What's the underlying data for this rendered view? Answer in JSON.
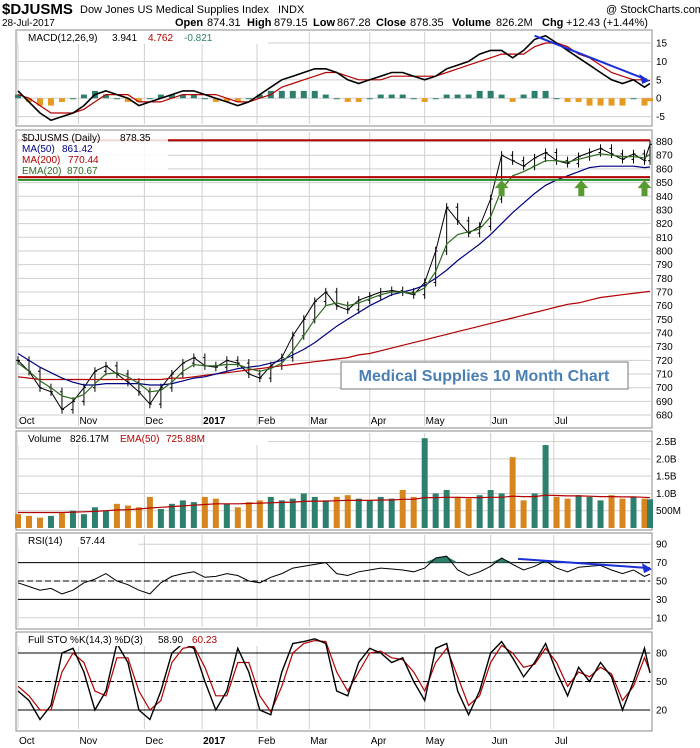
{
  "header": {
    "symbol": "$DJUSMS",
    "name": "Dow Jones US Medical Supplies Index",
    "exchange": "INDX",
    "date": "28-Jul-2017",
    "copyright": "@ StockCharts.com",
    "open_label": "Open",
    "open": "874.31",
    "high_label": "High",
    "high": "879.15",
    "low_label": "Low",
    "low": "867.28",
    "close_label": "Close",
    "close": "878.35",
    "volume_label": "Volume",
    "volume": "826.2M",
    "chg_label": "Chg",
    "chg": "+12.43 (+1.44%)"
  },
  "colors": {
    "grid": "#cfcfcf",
    "price": "#000000",
    "ma50": "#000080",
    "ma200": "#b30000",
    "ema20": "#2e6b1f",
    "hline_red": "#b30000",
    "support_green": "#2a8a2a",
    "arrow_green": "#5a9a32",
    "macd_pos": "#2f7f6f",
    "macd_neg": "#e79a22",
    "vol_up": "#2f7f6f",
    "vol_down": "#d6851f",
    "trend_blue": "#1a2fd6",
    "rsi_fill": "#2f7f6f",
    "annotation_text": "#4a7fb3"
  },
  "annotation": "Medical Supplies 10 Month Chart",
  "chart_data": [
    {
      "type": "line",
      "panel": "macd",
      "title": "MACD(12,26,9)",
      "legend": {
        "macd": "3.941",
        "signal": "4.762",
        "histogram": "-0.821"
      },
      "y_ticks": [
        15,
        10,
        5,
        0,
        -5
      ],
      "ylim": [
        -7,
        18
      ],
      "x": [
        0,
        4,
        8,
        12,
        16,
        20,
        24,
        28,
        32,
        36,
        40,
        44,
        48,
        52,
        56,
        60,
        64,
        68,
        72,
        76,
        80,
        84,
        88,
        92,
        96,
        100,
        104,
        108,
        112,
        116,
        120,
        124,
        128,
        132,
        136,
        140,
        144,
        148,
        152,
        156,
        160,
        164,
        168,
        172,
        176,
        180,
        184,
        188,
        192,
        196,
        200,
        204,
        208,
        212,
        216,
        220,
        224,
        228,
        230
      ],
      "macd_values": [
        2,
        -1,
        -4,
        -6,
        -5,
        -4,
        -2,
        1,
        2,
        1,
        0,
        -2,
        -1,
        0,
        1,
        2,
        2,
        1,
        0,
        -1,
        -2,
        -1,
        1,
        3,
        5,
        6,
        7,
        8,
        8,
        7,
        5,
        4,
        5,
        6,
        7,
        7,
        6,
        5,
        6,
        8,
        9,
        10,
        12,
        13,
        13,
        11,
        13,
        16,
        17,
        15,
        13,
        11,
        9,
        7,
        5,
        4,
        5,
        3,
        4
      ],
      "signal_values": [
        1,
        0,
        -2,
        -4,
        -4,
        -4,
        -3,
        -1,
        1,
        1,
        1,
        -1,
        -1,
        -1,
        0,
        1,
        1,
        1,
        1,
        0,
        -1,
        -1,
        0,
        1,
        3,
        4,
        5,
        6,
        7,
        7,
        6,
        5,
        5,
        5,
        6,
        6,
        6,
        6,
        6,
        7,
        8,
        9,
        10,
        11,
        12,
        12,
        12,
        14,
        15,
        15,
        14,
        12,
        11,
        9,
        7,
        6,
        5,
        5,
        4.8
      ],
      "trendline": {
        "from": [
          188,
          17
        ],
        "to": [
          229,
          5
        ]
      }
    },
    {
      "type": "line",
      "panel": "price",
      "title": "$DJUSMS (Daily)",
      "legend": [
        {
          "name": "$DJUSMS (Daily)",
          "value": "878.35"
        },
        {
          "name": "MA(50)",
          "value": "861.42"
        },
        {
          "name": "MA(200)",
          "value": "770.44"
        },
        {
          "name": "EMA(20)",
          "value": "870.67"
        }
      ],
      "y_ticks": [
        680,
        690,
        700,
        710,
        720,
        730,
        740,
        750,
        760,
        770,
        780,
        790,
        800,
        810,
        820,
        830,
        840,
        850,
        860,
        870,
        880
      ],
      "ylim": [
        672,
        887
      ],
      "x_ticks": [
        "Oct",
        "Nov",
        "Dec",
        "2017",
        "Feb",
        "Mar",
        "Apr",
        "May",
        "Jun",
        "Jul"
      ],
      "x": [
        0,
        4,
        8,
        12,
        16,
        20,
        24,
        28,
        32,
        36,
        40,
        44,
        48,
        52,
        56,
        60,
        64,
        68,
        72,
        76,
        80,
        84,
        88,
        92,
        96,
        100,
        104,
        108,
        112,
        116,
        120,
        124,
        128,
        132,
        136,
        140,
        144,
        148,
        152,
        156,
        160,
        164,
        168,
        172,
        176,
        180,
        184,
        188,
        192,
        196,
        200,
        204,
        208,
        212,
        216,
        220,
        224,
        228,
        230
      ],
      "close_values": [
        720,
        712,
        700,
        697,
        684,
        690,
        700,
        712,
        716,
        710,
        704,
        697,
        688,
        700,
        710,
        718,
        722,
        716,
        715,
        720,
        718,
        710,
        707,
        716,
        722,
        738,
        750,
        763,
        770,
        760,
        757,
        764,
        767,
        770,
        771,
        770,
        768,
        777,
        800,
        832,
        822,
        813,
        818,
        838,
        870,
        866,
        862,
        868,
        872,
        866,
        864,
        869,
        872,
        875,
        871,
        867,
        871,
        866,
        878
      ],
      "ma50_values": [
        725,
        720,
        715,
        711,
        707,
        704,
        702,
        702,
        703,
        703,
        703,
        703,
        702,
        702,
        703,
        705,
        707,
        708,
        710,
        712,
        714,
        715,
        716,
        718,
        720,
        724,
        728,
        733,
        739,
        745,
        750,
        755,
        760,
        764,
        768,
        770,
        772,
        775,
        780,
        786,
        793,
        799,
        805,
        812,
        820,
        828,
        835,
        842,
        848,
        852,
        855,
        858,
        861,
        862,
        862,
        862,
        862,
        861,
        861.42
      ],
      "ma200_values": [
        708,
        707,
        706,
        706,
        706,
        706,
        706,
        706,
        706,
        706,
        706,
        706,
        706,
        706,
        707,
        707,
        708,
        709,
        710,
        711,
        712,
        713,
        714,
        715,
        716,
        717,
        718,
        719,
        720,
        721,
        722,
        724,
        725,
        727,
        729,
        731,
        733,
        735,
        737,
        739,
        741,
        743,
        745,
        747,
        749,
        751,
        753,
        755,
        757,
        759,
        761,
        762,
        764,
        766,
        767,
        768,
        769,
        770,
        770.44
      ],
      "ema20_values": [
        718,
        712,
        705,
        700,
        694,
        692,
        695,
        703,
        710,
        711,
        708,
        703,
        697,
        698,
        704,
        712,
        717,
        716,
        716,
        717,
        717,
        714,
        712,
        714,
        718,
        727,
        738,
        750,
        760,
        762,
        760,
        762,
        765,
        768,
        770,
        770,
        769,
        773,
        785,
        805,
        812,
        814,
        816,
        825,
        845,
        855,
        858,
        862,
        866,
        866,
        865,
        867,
        869,
        871,
        870,
        869,
        869,
        868,
        870.67
      ],
      "hlines": [
        {
          "value": 881,
          "color": "red"
        },
        {
          "value": 854,
          "color": "red"
        },
        {
          "value": 852,
          "color": "green"
        }
      ],
      "support_arrows_at_x": [
        176,
        205,
        228
      ]
    },
    {
      "type": "bar",
      "panel": "volume",
      "title": "Volume",
      "legend": {
        "volume": "826.17M",
        "ema_label": "EMA(50)",
        "ema": "725.88M"
      },
      "y_ticks": [
        "2.5B",
        "2.0B",
        "1.5B",
        "1.0B",
        "500M"
      ],
      "ylim": [
        0,
        2.75
      ],
      "x": [
        0,
        4,
        8,
        12,
        16,
        20,
        24,
        28,
        32,
        36,
        40,
        44,
        48,
        52,
        56,
        60,
        64,
        68,
        72,
        76,
        80,
        84,
        88,
        92,
        96,
        100,
        104,
        108,
        112,
        116,
        120,
        124,
        128,
        132,
        136,
        140,
        144,
        148,
        152,
        156,
        160,
        164,
        168,
        172,
        176,
        180,
        184,
        188,
        192,
        196,
        200,
        204,
        208,
        212,
        216,
        220,
        224,
        228,
        230
      ],
      "values": [
        0.4,
        0.35,
        0.3,
        0.35,
        0.45,
        0.5,
        0.4,
        0.6,
        0.5,
        0.7,
        0.65,
        0.6,
        0.9,
        0.55,
        0.7,
        0.8,
        0.75,
        0.9,
        0.85,
        0.7,
        0.6,
        0.75,
        0.8,
        0.9,
        0.8,
        0.85,
        1.0,
        0.9,
        0.8,
        0.9,
        0.95,
        0.85,
        0.8,
        0.9,
        0.85,
        1.1,
        0.9,
        2.6,
        1.0,
        1.1,
        0.9,
        0.85,
        0.95,
        1.1,
        1.0,
        2.05,
        0.8,
        1.0,
        2.4,
        0.9,
        0.85,
        0.95,
        0.9,
        0.8,
        0.95,
        0.85,
        0.9,
        0.85,
        0.83
      ],
      "up": [
        0,
        0,
        0,
        1,
        0,
        1,
        1,
        1,
        1,
        0,
        0,
        0,
        0,
        1,
        1,
        1,
        1,
        0,
        0,
        1,
        0,
        0,
        0,
        1,
        1,
        1,
        1,
        1,
        1,
        0,
        0,
        1,
        1,
        1,
        1,
        0,
        0,
        1,
        1,
        1,
        0,
        0,
        1,
        1,
        1,
        0,
        0,
        1,
        1,
        0,
        0,
        1,
        1,
        1,
        0,
        0,
        1,
        0,
        1
      ],
      "ema_values": [
        0.45,
        0.45,
        0.45,
        0.45,
        0.45,
        0.46,
        0.47,
        0.48,
        0.5,
        0.52,
        0.53,
        0.55,
        0.58,
        0.6,
        0.62,
        0.64,
        0.66,
        0.68,
        0.7,
        0.7,
        0.7,
        0.71,
        0.72,
        0.73,
        0.74,
        0.75,
        0.77,
        0.78,
        0.78,
        0.79,
        0.8,
        0.8,
        0.8,
        0.81,
        0.81,
        0.83,
        0.83,
        0.88,
        0.88,
        0.89,
        0.89,
        0.88,
        0.88,
        0.89,
        0.89,
        0.92,
        0.91,
        0.91,
        0.95,
        0.94,
        0.93,
        0.93,
        0.92,
        0.91,
        0.91,
        0.9,
        0.9,
        0.89,
        0.88
      ]
    },
    {
      "type": "line",
      "panel": "rsi",
      "title": "RSI(14)",
      "legend": {
        "rsi": "57.44"
      },
      "y_ticks": [
        90,
        70,
        50,
        30,
        10
      ],
      "ylim": [
        0,
        100
      ],
      "x": [
        0,
        4,
        8,
        12,
        16,
        20,
        24,
        28,
        32,
        36,
        40,
        44,
        48,
        52,
        56,
        60,
        64,
        68,
        72,
        76,
        80,
        84,
        88,
        92,
        96,
        100,
        104,
        108,
        112,
        116,
        120,
        124,
        128,
        132,
        136,
        140,
        144,
        148,
        152,
        156,
        160,
        164,
        168,
        172,
        176,
        180,
        184,
        188,
        192,
        196,
        200,
        204,
        208,
        212,
        216,
        220,
        224,
        228,
        230
      ],
      "values": [
        48,
        44,
        40,
        42,
        36,
        40,
        48,
        52,
        58,
        50,
        46,
        40,
        36,
        48,
        55,
        58,
        60,
        54,
        55,
        58,
        56,
        50,
        48,
        54,
        58,
        64,
        66,
        68,
        70,
        58,
        56,
        60,
        62,
        64,
        63,
        62,
        60,
        64,
        75,
        77,
        62,
        56,
        60,
        66,
        75,
        68,
        62,
        66,
        72,
        64,
        60,
        65,
        66,
        67,
        62,
        58,
        62,
        55,
        57.44
      ],
      "trendline": {
        "from": [
          182,
          74
        ],
        "to": [
          230,
          64
        ]
      }
    },
    {
      "type": "line",
      "panel": "stochastics",
      "title": "Full STO %K(14,3) %D(3)",
      "legend": {
        "k": "58.90",
        "d": "60.23"
      },
      "y_ticks": [
        80,
        50,
        20
      ],
      "ylim": [
        0,
        100
      ],
      "x": [
        0,
        4,
        8,
        12,
        16,
        20,
        24,
        28,
        32,
        36,
        40,
        44,
        48,
        52,
        56,
        60,
        64,
        68,
        72,
        76,
        80,
        84,
        88,
        92,
        96,
        100,
        104,
        108,
        112,
        116,
        120,
        124,
        128,
        132,
        136,
        140,
        144,
        148,
        152,
        156,
        160,
        164,
        168,
        172,
        176,
        180,
        184,
        188,
        192,
        196,
        200,
        204,
        208,
        212,
        216,
        220,
        224,
        228,
        230
      ],
      "k_values": [
        40,
        30,
        10,
        25,
        80,
        85,
        60,
        20,
        40,
        90,
        70,
        20,
        10,
        40,
        80,
        90,
        85,
        50,
        20,
        40,
        85,
        60,
        20,
        15,
        60,
        90,
        92,
        95,
        90,
        40,
        35,
        70,
        85,
        80,
        70,
        75,
        50,
        30,
        85,
        90,
        40,
        15,
        40,
        80,
        92,
        75,
        55,
        70,
        90,
        60,
        35,
        65,
        50,
        70,
        55,
        20,
        50,
        85,
        58.9
      ],
      "d_values": [
        45,
        35,
        20,
        20,
        60,
        80,
        70,
        40,
        35,
        75,
        75,
        40,
        20,
        30,
        70,
        85,
        87,
        65,
        35,
        35,
        70,
        70,
        35,
        18,
        45,
        80,
        90,
        93,
        92,
        60,
        40,
        60,
        80,
        82,
        75,
        73,
        60,
        40,
        70,
        85,
        55,
        25,
        35,
        70,
        88,
        80,
        65,
        68,
        85,
        70,
        45,
        60,
        55,
        65,
        58,
        30,
        45,
        75,
        60.23
      ]
    }
  ]
}
